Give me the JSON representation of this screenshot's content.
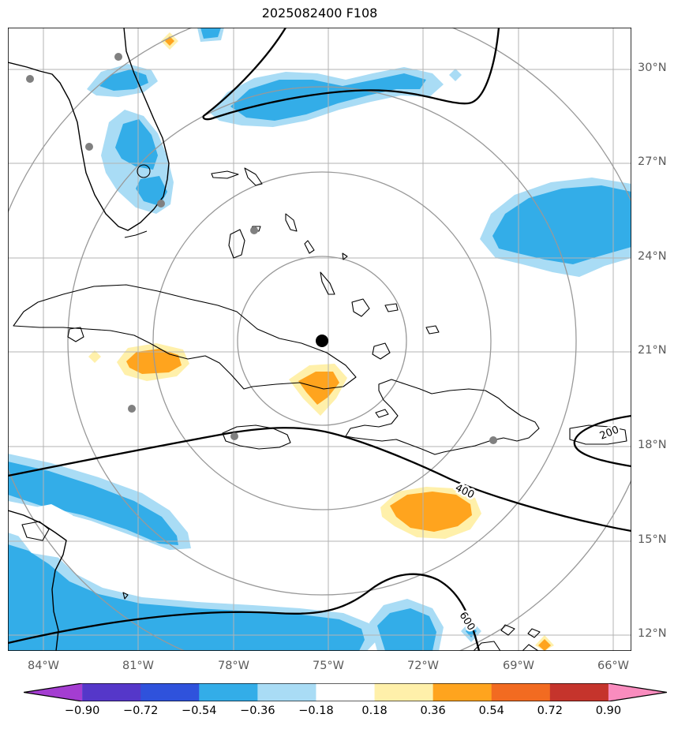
{
  "title": "2025082400 F108",
  "axes": {
    "lon": [
      "84°W",
      "81°W",
      "78°W",
      "75°W",
      "72°W",
      "69°W",
      "66°W"
    ],
    "lat": [
      "30°N",
      "27°N",
      "24°N",
      "21°N",
      "18°N",
      "15°N",
      "12°N"
    ]
  },
  "contours": {
    "labels": [
      "200",
      "400",
      "600"
    ]
  },
  "colorbar": {
    "ticks": [
      "−0.90",
      "−0.72",
      "−0.54",
      "−0.36",
      "−0.18",
      "0.18",
      "0.36",
      "0.54",
      "0.72",
      "0.90"
    ],
    "segments": [
      {
        "bin": "< -0.90",
        "color": "#A43DD1",
        "arrow": "left"
      },
      {
        "bin": "-0.90 to -0.72",
        "color": "#5537C9"
      },
      {
        "bin": "-0.72 to -0.54",
        "color": "#2F52DC"
      },
      {
        "bin": "-0.54 to -0.36",
        "color": "#33ADE8"
      },
      {
        "bin": "-0.36 to -0.18",
        "color": "#A9DCF5"
      },
      {
        "bin": "-0.18 to 0.18",
        "color": "#FFFFFF"
      },
      {
        "bin": "0.18 to 0.36",
        "color": "#FFF0AA"
      },
      {
        "bin": "0.36 to 0.54",
        "color": "#FFA41E"
      },
      {
        "bin": "0.54 to 0.72",
        "color": "#F26B21"
      },
      {
        "bin": "0.72 to 0.90",
        "color": "#C5342C"
      },
      {
        "bin": "> 0.90",
        "color": "#F98CBE",
        "arrow": "right"
      }
    ]
  },
  "palette": {
    "bright_blue": "#33ADE8",
    "light_blue": "#A9DCF5",
    "pale_yellow": "#FFF0AA",
    "orange": "#FFA41E",
    "grid_gray": "#B3B3B3",
    "ring_gray": "#999999",
    "label_gray": "#5A5A5A",
    "dot_gray": "#808080"
  },
  "chart_data": {
    "type": "filled_contour_map",
    "title": "2025082400 F108",
    "projection": "lon/lat (plate carree), Caribbean / western Atlantic",
    "lon_range_deg_w": [
      85.1,
      65.4
    ],
    "lat_range_deg_n": [
      11.5,
      31.3
    ],
    "lon_gridlines_deg_w": [
      84,
      81,
      78,
      75,
      72,
      69,
      66
    ],
    "lat_gridlines_deg_n": [
      30,
      27,
      24,
      21,
      18,
      15,
      12
    ],
    "storm_center_marker": {
      "lon_deg_w": 75.2,
      "lat_deg_n": 21.4,
      "style": "filled black circle"
    },
    "range_rings": {
      "count": 4,
      "style": "gray concentric circles centered on storm marker"
    },
    "black_contour_labels": [
      200,
      400,
      600
    ],
    "shading_bin_edges": [
      -0.9,
      -0.72,
      -0.54,
      -0.36,
      -0.18,
      0.18,
      0.36,
      0.54,
      0.72,
      0.9
    ],
    "shaded_regions": [
      {
        "sign": "negative",
        "bin": "-0.54 to -0.36",
        "area": "Atlantic coast near 81.5W 30N (NE Florida / Georgia)"
      },
      {
        "sign": "negative",
        "bin": "-0.54 to -0.36",
        "area": "central Florida peninsula 82.5-80.5W 26-28.5N"
      },
      {
        "sign": "negative",
        "bin": "-0.54 to -0.36",
        "area": "Atlantic band 78.5-70.5W 29-30.5N"
      },
      {
        "sign": "negative",
        "bin": "-0.54 to -0.36",
        "area": "western Atlantic 69.5-65.5W 23.5-26.5N"
      },
      {
        "sign": "negative",
        "bin": "-0.54 to -0.36",
        "area": "large southwest Caribbean region 85-73.5W 11.5-17N"
      },
      {
        "sign": "negative",
        "bin": "-0.54 to -0.36",
        "area": "south-central Caribbean ~73W 11.5-12.5N"
      },
      {
        "sign": "negative",
        "bin": "-0.36 to -0.18",
        "area": "small diamonds ~78.8W 30.9N, ~71.2W 29.8N, ~70.9W 12N"
      },
      {
        "sign": "positive",
        "bin": "0.36 to 0.54",
        "area": "western-central Cuba ~81W 21N"
      },
      {
        "sign": "positive",
        "bin": "0.36 to 0.54",
        "area": "south of eastern Cuba ~76W 20N"
      },
      {
        "sign": "positive",
        "bin": "0.36 to 0.54",
        "area": "central Caribbean ~71.5W 15.5N"
      },
      {
        "sign": "positive",
        "bin": "0.18 to 0.36",
        "area": "small diamonds ~81.5W 21.1N, ~78.7W 30.8N, ~68.3W 11.6N"
      }
    ],
    "basemap_features": "coastlines: Florida, Bahamas, Cuba, Isla de la Juventud, Jamaica, Hispaniola, Puerto Rico, Central America, ABC islands",
    "gray_dots": "city/station markers over Florida, Bahamas, Cayman, Jamaica, Hispaniola"
  }
}
